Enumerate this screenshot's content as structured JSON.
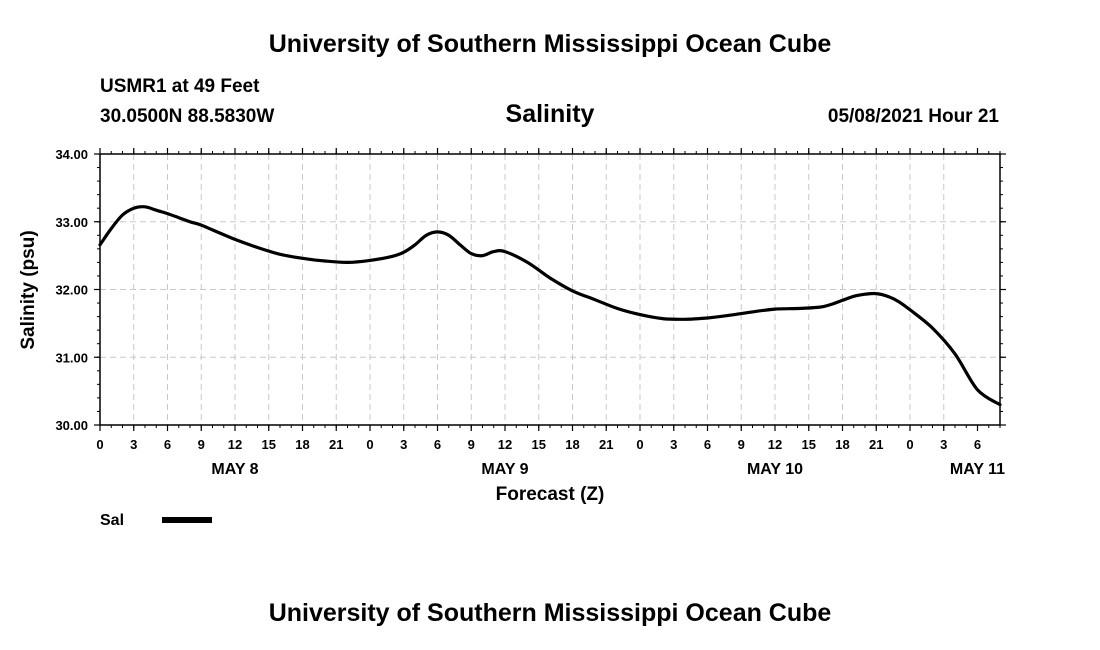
{
  "header": {
    "title_top": "University of Southern Mississippi Ocean Cube",
    "station": "USMR1 at 49 Feet",
    "coords": "30.0500N  88.5830W",
    "datetime": "05/08/2021 Hour 21"
  },
  "footer": {
    "title_bottom": "University of Southern Mississippi Ocean Cube"
  },
  "colors": {
    "line": "#000000",
    "grid": "#c8c8c8",
    "background": "#ffffff"
  },
  "chart_data": {
    "type": "line",
    "title": "Salinity",
    "xlabel": "Forecast (Z)",
    "ylabel": "Salinity (psu)",
    "ylim": [
      30.0,
      34.0
    ],
    "yticks": [
      "30.00",
      "31.00",
      "32.00",
      "33.00",
      "34.00"
    ],
    "xlim": [
      0,
      80
    ],
    "xtick_labels": [
      "0",
      "3",
      "6",
      "9",
      "12",
      "15",
      "18",
      "21",
      "0",
      "3",
      "6",
      "9",
      "12",
      "15",
      "18",
      "21",
      "0",
      "3",
      "6",
      "9",
      "12",
      "15",
      "18",
      "21",
      "0",
      "3",
      "6"
    ],
    "day_labels": [
      {
        "label": "MAY 8",
        "hour": 12
      },
      {
        "label": "MAY 9",
        "hour": 36
      },
      {
        "label": "MAY 10",
        "hour": 60
      },
      {
        "label": "MAY 11",
        "hour": 78
      }
    ],
    "legend": "Sal",
    "series": [
      {
        "name": "Sal",
        "x": [
          0,
          1,
          2,
          3,
          4,
          5,
          6,
          7,
          8,
          9,
          10,
          12,
          14,
          16,
          18,
          20,
          22,
          24,
          26,
          27,
          28,
          29,
          30,
          31,
          32,
          33,
          34,
          35,
          36,
          38,
          40,
          42,
          44,
          46,
          48,
          50,
          52,
          54,
          56,
          58,
          60,
          62,
          64,
          65,
          66,
          67,
          68,
          69,
          70,
          71,
          72,
          74,
          76,
          78,
          80
        ],
        "values": [
          32.66,
          32.9,
          33.1,
          33.2,
          33.22,
          33.17,
          33.12,
          33.06,
          33.0,
          32.95,
          32.88,
          32.74,
          32.62,
          32.52,
          32.46,
          32.42,
          32.4,
          32.43,
          32.49,
          32.55,
          32.66,
          32.8,
          32.85,
          32.8,
          32.66,
          32.53,
          32.5,
          32.56,
          32.56,
          32.4,
          32.17,
          31.98,
          31.85,
          31.72,
          31.63,
          31.57,
          31.56,
          31.58,
          31.62,
          31.67,
          31.71,
          31.72,
          31.74,
          31.78,
          31.84,
          31.9,
          31.93,
          31.94,
          31.9,
          31.82,
          31.7,
          31.43,
          31.05,
          30.52,
          30.3
        ]
      }
    ]
  }
}
